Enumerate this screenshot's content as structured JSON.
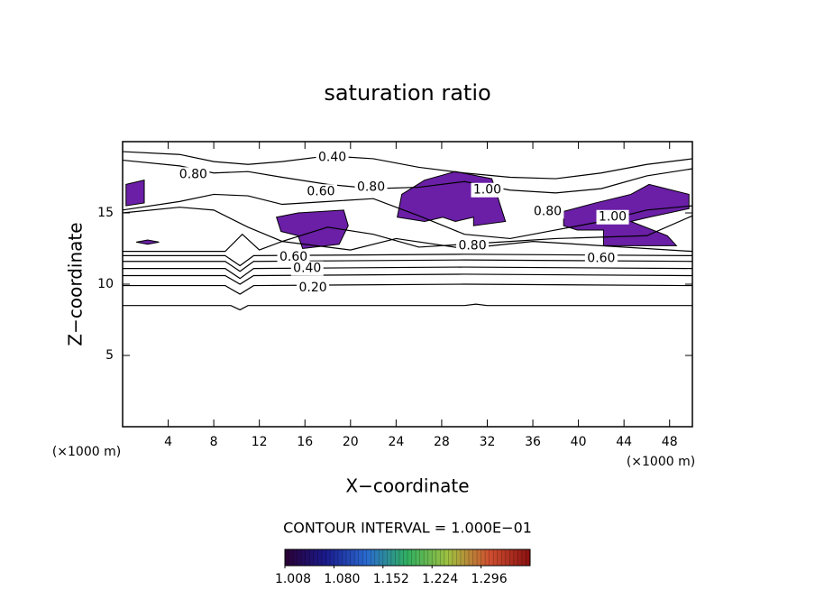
{
  "chart_data": {
    "type": "contour",
    "title": "saturation ratio",
    "x_label": "X−coordinate",
    "y_label": "Z−coordinate",
    "x_unit": "(×1000 m)",
    "y_unit": "(×1000 m)",
    "xlim": [
      0,
      50
    ],
    "ylim": [
      0,
      20
    ],
    "xticks": [
      4,
      8,
      12,
      16,
      20,
      24,
      28,
      32,
      36,
      40,
      44,
      48
    ],
    "yticks": [
      5,
      10,
      15
    ],
    "contour_interval": "CONTOUR INTERVAL = 1.000E−01",
    "line_color": "#000000",
    "fill_color": "#6a1fa6",
    "contours": [
      {
        "x": [
          0,
          9.5,
          10.3,
          11,
          30,
          31,
          32,
          50
        ],
        "y": [
          8.5,
          8.5,
          8.2,
          8.5,
          8.5,
          8.6,
          8.5,
          8.5
        ]
      },
      {
        "x": [
          0,
          9,
          10.3,
          11.5,
          30,
          50
        ],
        "y": [
          9.9,
          9.9,
          9.3,
          9.9,
          10.0,
          9.9
        ]
      },
      {
        "x": [
          0,
          9,
          10.3,
          11.5,
          30,
          50
        ],
        "y": [
          10.6,
          10.6,
          10.0,
          10.6,
          10.7,
          10.6
        ]
      },
      {
        "x": [
          0,
          9,
          10.3,
          11.5,
          30,
          50
        ],
        "y": [
          11.1,
          11.1,
          10.4,
          11.1,
          11.2,
          11.1
        ]
      },
      {
        "x": [
          0,
          9,
          10.3,
          11.5,
          30,
          50
        ],
        "y": [
          11.6,
          11.6,
          10.9,
          11.6,
          11.7,
          11.6
        ]
      },
      {
        "x": [
          0,
          9,
          10.3,
          11.5,
          30,
          50
        ],
        "y": [
          12.0,
          12.0,
          11.3,
          12.0,
          12.1,
          12.0
        ]
      },
      {
        "x": [
          0,
          9,
          10.5,
          12,
          14,
          20,
          24,
          30,
          36,
          50
        ],
        "y": [
          12.3,
          12.3,
          13.5,
          12.4,
          13.0,
          12.4,
          13.2,
          12.5,
          13.0,
          12.3
        ]
      },
      {
        "x": [
          0,
          5,
          8,
          11,
          14,
          18,
          22,
          26,
          30,
          34,
          38,
          42,
          46,
          50
        ],
        "y": [
          18.7,
          18.3,
          17.8,
          17.9,
          17.5,
          17.0,
          16.7,
          16.8,
          17.2,
          16.6,
          16.4,
          16.7,
          17.6,
          18.1
        ]
      },
      {
        "x": [
          0,
          5,
          8,
          11,
          14,
          18,
          22,
          26,
          30,
          34,
          38,
          42,
          46,
          50
        ],
        "y": [
          19.3,
          19.1,
          18.6,
          18.4,
          18.6,
          19.0,
          18.8,
          18.2,
          17.8,
          17.5,
          17.4,
          17.8,
          18.4,
          18.8
        ]
      },
      {
        "x": [
          0,
          5,
          8,
          11,
          14,
          18,
          22,
          26,
          30,
          34,
          38,
          42,
          46,
          50
        ],
        "y": [
          15.2,
          15.8,
          16.3,
          16.2,
          15.6,
          15.8,
          16.0,
          14.8,
          13.5,
          13.2,
          13.8,
          14.4,
          15.2,
          15.5
        ]
      },
      {
        "x": [
          0,
          5,
          8,
          11,
          14,
          18,
          22,
          26,
          30,
          34,
          38,
          42,
          46,
          50
        ],
        "y": [
          15.0,
          15.4,
          15.2,
          14.0,
          13.0,
          14.0,
          13.5,
          12.6,
          12.8,
          13.0,
          13.2,
          13.3,
          13.4,
          14.8
        ]
      }
    ],
    "regions": [
      {
        "x": [
          0.3,
          1.9,
          1.9,
          0.3
        ],
        "y": [
          17.0,
          17.3,
          15.7,
          15.5
        ]
      },
      {
        "x": [
          1.2,
          2.2,
          3.2,
          2.2
        ],
        "y": [
          12.95,
          13.1,
          12.95,
          12.8
        ]
      },
      {
        "x": [
          13.5,
          15.4,
          19.4,
          19.8,
          19.0,
          15.8,
          15.4,
          13.9
        ],
        "y": [
          14.7,
          15.0,
          15.2,
          14.1,
          12.8,
          12.5,
          13.4,
          13.7
        ]
      },
      {
        "x": [
          24.5,
          26.5,
          29.2,
          32.4,
          33.2,
          33.6,
          30.8,
          30.8,
          29.2,
          28.1,
          26.5,
          24.1
        ],
        "y": [
          16.3,
          17.3,
          17.9,
          17.4,
          15.4,
          14.4,
          14.1,
          14.7,
          14.4,
          14.7,
          14.4,
          14.7
        ]
      },
      {
        "x": [
          38.7,
          41.5,
          44.6,
          46.2,
          48.2,
          49.7,
          49.7,
          46.2,
          44.6,
          47.8,
          48.6,
          42.2,
          42.2,
          39.9,
          38.7
        ],
        "y": [
          15.1,
          15.7,
          16.3,
          17.0,
          16.6,
          16.3,
          15.3,
          14.7,
          14.4,
          13.4,
          12.7,
          12.7,
          13.8,
          13.8,
          14.1
        ]
      }
    ],
    "contour_labels": [
      {
        "value": 0.8,
        "label": "0.80",
        "x": 6.2,
        "y": 17.7
      },
      {
        "value": 0.4,
        "label": "0.40",
        "x": 18.4,
        "y": 18.9
      },
      {
        "value": 0.6,
        "label": "0.60",
        "x": 17.4,
        "y": 16.5
      },
      {
        "value": 0.8,
        "label": "0.80",
        "x": 21.8,
        "y": 16.8
      },
      {
        "value": 1.0,
        "label": "1.00",
        "x": 32.0,
        "y": 16.6
      },
      {
        "value": 0.8,
        "label": "0.80",
        "x": 37.3,
        "y": 15.1
      },
      {
        "value": 1.0,
        "label": "1.00",
        "x": 43.0,
        "y": 14.7
      },
      {
        "value": 0.8,
        "label": "0.80",
        "x": 30.7,
        "y": 12.7
      },
      {
        "value": 0.6,
        "label": "0.60",
        "x": 15.0,
        "y": 11.9
      },
      {
        "value": 0.4,
        "label": "0.40",
        "x": 16.2,
        "y": 11.1
      },
      {
        "value": 0.2,
        "label": "0.20",
        "x": 16.7,
        "y": 9.75
      },
      {
        "value": 0.6,
        "label": "0.60",
        "x": 42.0,
        "y": 11.8
      }
    ],
    "colorbar": {
      "lim": [
        1.008,
        1.368
      ],
      "colors": [
        "#2a0033",
        "#1a1a8c",
        "#2a6ad0",
        "#30b060",
        "#a0c040",
        "#d05030",
        "#8a1010"
      ],
      "ticks": [
        {
          "value": 1.008,
          "label": "1.008"
        },
        {
          "value": 1.08,
          "label": "1.080"
        },
        {
          "value": 1.152,
          "label": "1.152"
        },
        {
          "value": 1.224,
          "label": "1.224"
        },
        {
          "value": 1.296,
          "label": "1.296"
        }
      ]
    }
  }
}
